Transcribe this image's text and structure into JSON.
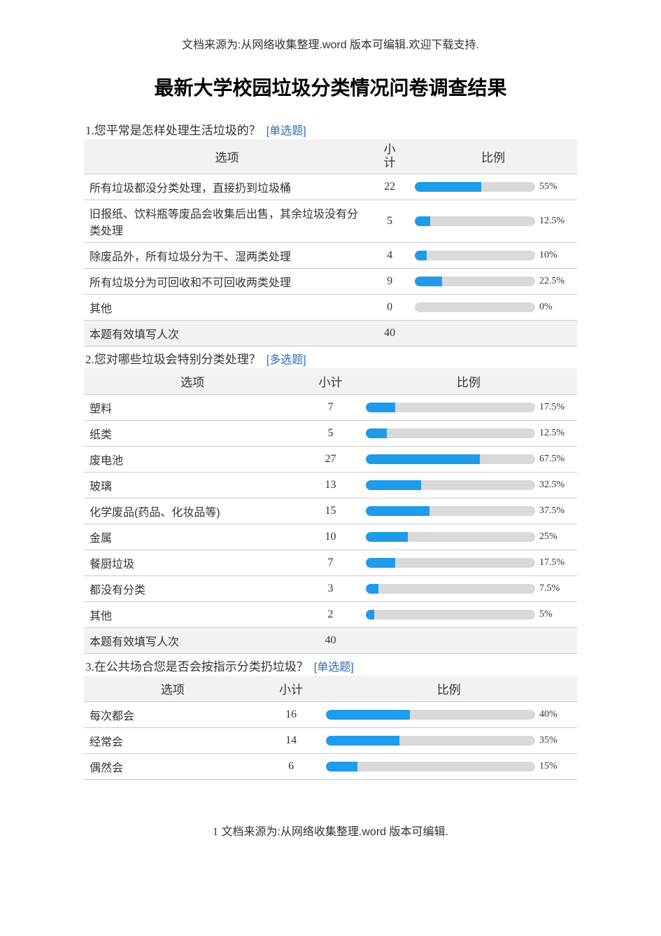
{
  "page": {
    "source_top": "文档来源为:从网络收集整理.word 版本可编辑.欢迎下载支持.",
    "title": "最新大学校园垃圾分类情况问卷调查结果",
    "source_bottom_prefix": "1",
    "source_bottom": " 文档来源为:从网络收集整理.word 版本可编辑."
  },
  "headers": {
    "option": "选项",
    "count": "小计",
    "count_split_a": "小",
    "count_split_b": "计",
    "ratio": "比例"
  },
  "summary_label": "本题有效填写人次",
  "bar_colors": {
    "fill": "#1e9be9",
    "track": "#d9d9d9"
  },
  "questions": [
    {
      "num": "1.",
      "text": "您平常是怎样处理生活垃圾的？",
      "type_label": "[单选题]",
      "col_widths": {
        "option": "58%",
        "count": "8%",
        "ratio": "34%"
      },
      "split_count_header": true,
      "rows": [
        {
          "option": "所有垃圾都没分类处理，直接扔到垃圾桶",
          "count": "22",
          "pct": 55,
          "pct_label": "55%"
        },
        {
          "option": "旧报纸、饮料瓶等废品会收集后出售，其余垃圾没有分类处理",
          "count": "5",
          "pct": 12.5,
          "pct_label": "12.5%"
        },
        {
          "option": "除废品外，所有垃圾分为干、湿两类处理",
          "count": "4",
          "pct": 10,
          "pct_label": "10%"
        },
        {
          "option": "所有垃圾分为可回收和不可回收两类处理",
          "count": "9",
          "pct": 22.5,
          "pct_label": "22.5%"
        },
        {
          "option": "其他",
          "count": "0",
          "pct": 0,
          "pct_label": "0%"
        }
      ],
      "summary_count": "40"
    },
    {
      "num": "2.",
      "text": "您对哪些垃圾会特别分类处理？",
      "type_label": "[多选题]",
      "col_widths": {
        "option": "44%",
        "count": "12%",
        "ratio": "44%"
      },
      "split_count_header": false,
      "rows": [
        {
          "option": "塑料",
          "count": "7",
          "pct": 17.5,
          "pct_label": "17.5%"
        },
        {
          "option": "纸类",
          "count": "5",
          "pct": 12.5,
          "pct_label": "12.5%"
        },
        {
          "option": "废电池",
          "count": "27",
          "pct": 67.5,
          "pct_label": "67.5%"
        },
        {
          "option": "玻璃",
          "count": "13",
          "pct": 32.5,
          "pct_label": "32.5%"
        },
        {
          "option": "化学废品(药品、化妆品等)",
          "count": "15",
          "pct": 37.5,
          "pct_label": "37.5%"
        },
        {
          "option": "金属",
          "count": "10",
          "pct": 25,
          "pct_label": "25%"
        },
        {
          "option": "餐厨垃圾",
          "count": "7",
          "pct": 17.5,
          "pct_label": "17.5%"
        },
        {
          "option": "都没有分类",
          "count": "3",
          "pct": 7.5,
          "pct_label": "7.5%"
        },
        {
          "option": "其他",
          "count": "2",
          "pct": 5,
          "pct_label": "5%"
        }
      ],
      "summary_count": "40"
    },
    {
      "num": "3.",
      "text": "在公共场合您是否会按指示分类扔垃圾？",
      "type_label": "[单选题]",
      "col_widths": {
        "option": "36%",
        "count": "12%",
        "ratio": "52%"
      },
      "split_count_header": false,
      "rows": [
        {
          "option": "每次都会",
          "count": "16",
          "pct": 40,
          "pct_label": "40%"
        },
        {
          "option": "经常会",
          "count": "14",
          "pct": 35,
          "pct_label": "35%"
        },
        {
          "option": "偶然会",
          "count": "6",
          "pct": 15,
          "pct_label": "15%"
        }
      ],
      "summary_count": null
    }
  ]
}
